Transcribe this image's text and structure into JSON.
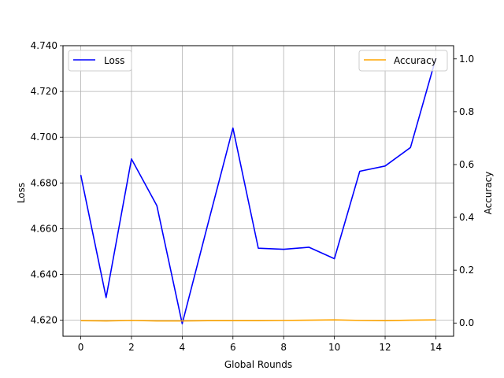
{
  "chart_data": {
    "type": "line",
    "xlabel": "Global Rounds",
    "ylabel_left": "Loss",
    "ylabel_right": "Accuracy",
    "x": [
      0,
      1,
      2,
      3,
      4,
      5,
      6,
      7,
      8,
      9,
      10,
      11,
      12,
      13,
      14
    ],
    "xlim": [
      -0.7,
      14.7
    ],
    "xticks": [
      0,
      2,
      4,
      6,
      8,
      10,
      12,
      14
    ],
    "xtick_labels": [
      "0",
      "2",
      "4",
      "6",
      "8",
      "10",
      "12",
      "14"
    ],
    "ylim_left": [
      4.613,
      4.74
    ],
    "yticks_left": [
      4.62,
      4.64,
      4.66,
      4.68,
      4.7,
      4.72,
      4.74
    ],
    "ytick_labels_left": [
      "4.620",
      "4.640",
      "4.660",
      "4.680",
      "4.700",
      "4.720",
      "4.740"
    ],
    "ylim_right": [
      -0.05,
      1.05
    ],
    "yticks_right": [
      0.0,
      0.2,
      0.4,
      0.6,
      0.8,
      1.0
    ],
    "ytick_labels_right": [
      "0.0",
      "0.2",
      "0.4",
      "0.6",
      "0.8",
      "1.0"
    ],
    "grid": true,
    "series": [
      {
        "name": "Loss",
        "axis": "left",
        "color": "#0000ff",
        "values": [
          4.6835,
          4.6299,
          4.6905,
          4.6701,
          4.6185,
          4.6615,
          4.704,
          4.6515,
          4.651,
          4.6519,
          4.6469,
          4.6851,
          4.6874,
          4.6955,
          4.7345
        ]
      },
      {
        "name": "Accuracy",
        "axis": "right",
        "color": "#ffa500",
        "values": [
          0.009,
          0.008,
          0.01,
          0.008,
          0.008,
          0.009,
          0.009,
          0.009,
          0.01,
          0.011,
          0.012,
          0.01,
          0.009,
          0.011,
          0.012
        ]
      }
    ],
    "legend": [
      {
        "label": "Loss",
        "placement": "upper-left"
      },
      {
        "label": "Accuracy",
        "placement": "upper-right"
      }
    ]
  }
}
